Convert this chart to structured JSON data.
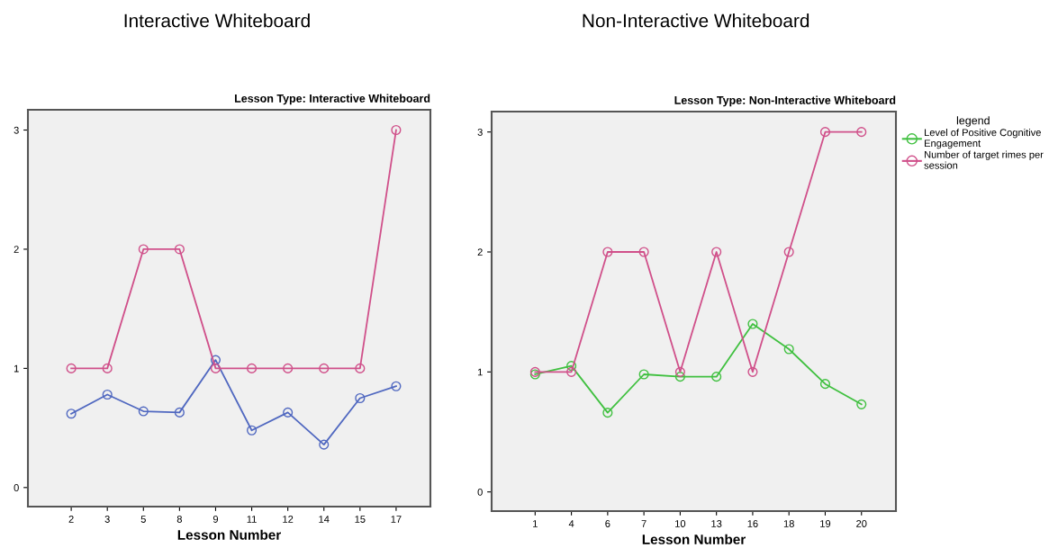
{
  "chart_data": [
    {
      "type": "line",
      "title": "Interactive Whiteboard",
      "subtitle": "Lesson Type: Interactive Whiteboard",
      "xlabel": "Lesson Number",
      "categories": [
        "2",
        "3",
        "5",
        "8",
        "9",
        "11",
        "12",
        "14",
        "15",
        "17"
      ],
      "ylim": [
        -0.16,
        3.17
      ],
      "yticks": [
        0,
        1,
        2,
        3
      ],
      "grid": false,
      "legend": false,
      "marker": "circle",
      "line_style": "solid",
      "series": [
        {
          "color": "#5068c0",
          "values": [
            0.62,
            0.78,
            0.64,
            0.63,
            1.07,
            0.48,
            0.63,
            0.36,
            0.75,
            0.85
          ]
        },
        {
          "color": "#d0508a",
          "values": [
            1,
            1,
            2,
            2,
            1,
            1,
            1,
            1,
            1,
            3
          ]
        }
      ]
    },
    {
      "type": "line",
      "title": "Non-Interactive Whiteboard",
      "subtitle": "Lesson Type: Non-Interactive Whiteboard",
      "xlabel": "Lesson Number",
      "legend_title": "legend",
      "categories": [
        "1",
        "4",
        "6",
        "7",
        "10",
        "13",
        "16",
        "18",
        "19",
        "20"
      ],
      "ylim": [
        -0.16,
        3.17
      ],
      "yticks": [
        0,
        1,
        2,
        3
      ],
      "grid": false,
      "legend": "right",
      "marker": "circle",
      "line_style": "solid",
      "series": [
        {
          "name": "Level of Positive Cognitive\nEngagement",
          "color": "#40c040",
          "values": [
            0.98,
            1.05,
            0.66,
            0.98,
            0.96,
            0.96,
            1.4,
            1.19,
            0.9,
            0.73
          ]
        },
        {
          "name": "Number of target rimes per\nsession",
          "color": "#d0508a",
          "values": [
            1,
            1,
            2,
            2,
            1,
            2,
            1,
            2,
            3,
            3
          ]
        }
      ]
    }
  ]
}
